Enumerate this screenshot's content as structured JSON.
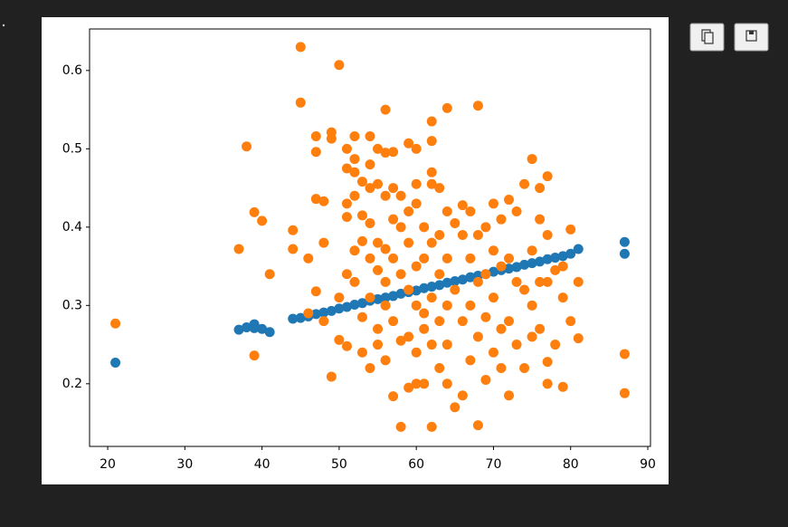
{
  "chart_data": {
    "type": "scatter",
    "xlim": [
      17.65,
      90.35
    ],
    "ylim": [
      0.12,
      0.653
    ],
    "xticks": [
      20,
      30,
      40,
      50,
      60,
      70,
      80,
      90
    ],
    "yticks": [
      0.2,
      0.3,
      0.4,
      0.5,
      0.6
    ],
    "grid": false,
    "series": [
      {
        "color": "#1f77b4",
        "x": [
          21,
          37,
          38,
          39,
          39,
          40,
          41,
          44,
          45,
          46,
          47,
          48,
          49,
          50,
          51,
          52,
          53,
          54,
          55,
          56,
          57,
          58,
          59,
          60,
          61,
          62,
          63,
          64,
          65,
          66,
          67,
          68,
          69,
          70,
          71,
          72,
          73,
          74,
          75,
          76,
          77,
          78,
          79,
          80,
          81,
          87,
          87
        ],
        "values": [
          0.227,
          0.269,
          0.272,
          0.276,
          0.271,
          0.27,
          0.266,
          0.283,
          0.284,
          0.286,
          0.289,
          0.291,
          0.293,
          0.296,
          0.298,
          0.301,
          0.303,
          0.306,
          0.308,
          0.31,
          0.312,
          0.315,
          0.317,
          0.319,
          0.322,
          0.324,
          0.326,
          0.329,
          0.331,
          0.333,
          0.336,
          0.338,
          0.34,
          0.343,
          0.345,
          0.347,
          0.349,
          0.352,
          0.354,
          0.356,
          0.359,
          0.361,
          0.363,
          0.366,
          0.372,
          0.381,
          0.366
        ]
      },
      {
        "color": "#ff7f0e",
        "x": [
          21,
          37,
          38,
          39,
          39,
          40,
          41,
          44,
          44,
          45,
          45,
          46,
          46,
          47,
          47,
          47,
          47,
          48,
          48,
          48,
          49,
          49,
          49,
          50,
          50,
          50,
          51,
          51,
          51,
          51,
          51,
          51,
          52,
          52,
          52,
          52,
          52,
          52,
          53,
          53,
          53,
          53,
          53,
          54,
          54,
          54,
          54,
          54,
          54,
          54,
          55,
          55,
          55,
          55,
          55,
          55,
          56,
          56,
          56,
          56,
          56,
          56,
          56,
          57,
          57,
          57,
          57,
          57,
          57,
          58,
          58,
          58,
          58,
          58,
          59,
          59,
          59,
          59,
          59,
          59,
          60,
          60,
          60,
          60,
          60,
          60,
          60,
          61,
          61,
          61,
          61,
          61,
          62,
          62,
          62,
          62,
          62,
          62,
          62,
          62,
          63,
          63,
          63,
          63,
          63,
          64,
          64,
          64,
          64,
          64,
          64,
          65,
          65,
          65,
          66,
          66,
          66,
          66,
          67,
          67,
          67,
          67,
          68,
          68,
          68,
          68,
          68,
          69,
          69,
          69,
          69,
          70,
          70,
          70,
          70,
          71,
          71,
          71,
          71,
          72,
          72,
          72,
          72,
          73,
          73,
          73,
          74,
          74,
          74,
          75,
          75,
          75,
          75,
          76,
          76,
          76,
          76,
          77,
          77,
          77,
          77,
          77,
          78,
          78,
          79,
          79,
          79,
          80,
          80,
          81,
          81,
          87,
          87
        ],
        "values": [
          0.277,
          0.372,
          0.503,
          0.419,
          0.236,
          0.408,
          0.34,
          0.396,
          0.372,
          0.63,
          0.559,
          0.36,
          0.29,
          0.516,
          0.496,
          0.436,
          0.318,
          0.433,
          0.38,
          0.28,
          0.521,
          0.513,
          0.209,
          0.607,
          0.256,
          0.31,
          0.5,
          0.475,
          0.43,
          0.413,
          0.34,
          0.248,
          0.516,
          0.487,
          0.47,
          0.44,
          0.37,
          0.33,
          0.458,
          0.415,
          0.382,
          0.24,
          0.285,
          0.516,
          0.48,
          0.45,
          0.405,
          0.36,
          0.22,
          0.31,
          0.5,
          0.455,
          0.38,
          0.345,
          0.25,
          0.27,
          0.55,
          0.495,
          0.44,
          0.372,
          0.33,
          0.3,
          0.23,
          0.496,
          0.45,
          0.41,
          0.36,
          0.28,
          0.184,
          0.44,
          0.4,
          0.34,
          0.255,
          0.145,
          0.507,
          0.42,
          0.38,
          0.32,
          0.26,
          0.195,
          0.5,
          0.455,
          0.43,
          0.35,
          0.3,
          0.24,
          0.2,
          0.4,
          0.36,
          0.29,
          0.27,
          0.2,
          0.535,
          0.51,
          0.47,
          0.455,
          0.38,
          0.31,
          0.25,
          0.145,
          0.45,
          0.39,
          0.34,
          0.28,
          0.22,
          0.552,
          0.42,
          0.36,
          0.3,
          0.25,
          0.2,
          0.405,
          0.32,
          0.17,
          0.428,
          0.39,
          0.28,
          0.185,
          0.42,
          0.36,
          0.3,
          0.23,
          0.555,
          0.39,
          0.33,
          0.26,
          0.147,
          0.4,
          0.34,
          0.285,
          0.205,
          0.43,
          0.37,
          0.31,
          0.24,
          0.41,
          0.35,
          0.27,
          0.22,
          0.435,
          0.36,
          0.28,
          0.185,
          0.42,
          0.33,
          0.25,
          0.455,
          0.32,
          0.22,
          0.487,
          0.37,
          0.3,
          0.26,
          0.45,
          0.41,
          0.33,
          0.27,
          0.465,
          0.39,
          0.33,
          0.228,
          0.2,
          0.345,
          0.25,
          0.35,
          0.31,
          0.196,
          0.397,
          0.28,
          0.33,
          0.258,
          0.238,
          0.188
        ]
      }
    ]
  }
}
